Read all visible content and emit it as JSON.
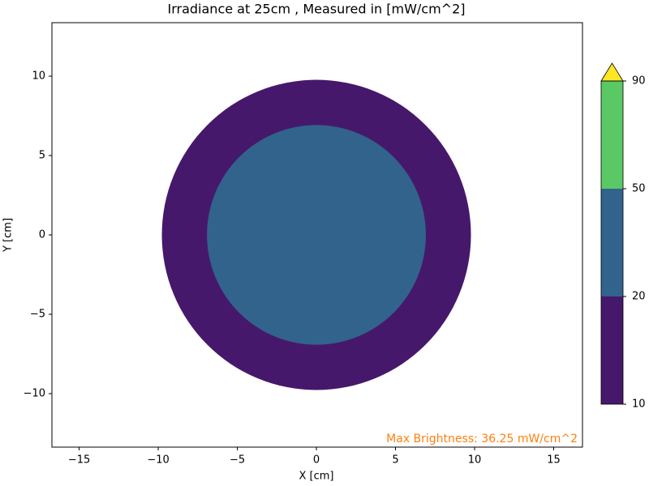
{
  "chart_data": {
    "type": "contour",
    "title": "Irradiance at 25cm , Measured in [mW/cm^2]",
    "x_label": "X [cm]",
    "y_label": "Y [cm]",
    "xlim": [
      -16.72,
      16.82
    ],
    "ylim": [
      -13.37,
      13.37
    ],
    "xticks": [
      {
        "value": -15,
        "label": "−15"
      },
      {
        "value": -10,
        "label": "−10"
      },
      {
        "value": -5,
        "label": "−5"
      },
      0,
      5,
      10,
      15
    ],
    "yticks": [
      {
        "value": -10,
        "label": "−10"
      },
      {
        "value": -5,
        "label": "−5"
      },
      0,
      5,
      10
    ],
    "center": [
      0,
      0
    ],
    "contours": [
      {
        "range": [
          10,
          20
        ],
        "radius": 9.77,
        "color": "#46186b"
      },
      {
        "range": [
          20,
          50
        ],
        "radius": 6.92,
        "color": "#31638d"
      }
    ],
    "colorbar": {
      "levels": [
        10,
        20,
        50,
        90
      ],
      "colors": [
        "#46186b",
        "#31638d",
        "#5ac864"
      ],
      "extend_color": "#fde725"
    },
    "annotation": "Max Brightness: 36.25 mW/cm^2",
    "annotation_color": "#ff7f0e"
  }
}
